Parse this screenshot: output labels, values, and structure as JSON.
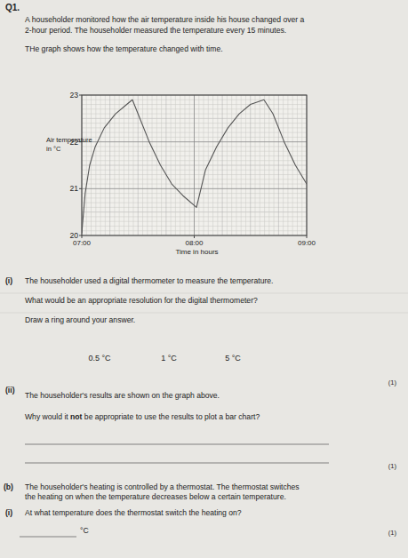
{
  "question_number": "Q1.",
  "intro": [
    "A householder monitored how the air temperature inside his house changed over a",
    "2-hour period. The householder measured the temperature every 15 minutes."
  ],
  "graph_intro": "THe graph shows how the temperature changed with time.",
  "chart_data": {
    "type": "line",
    "y_label": [
      "Air temperature",
      "in °C"
    ],
    "x_label": "Time in hours",
    "x": [
      7.0,
      7.03,
      7.07,
      7.12,
      7.2,
      7.3,
      7.4,
      7.45,
      7.5,
      7.6,
      7.7,
      7.8,
      7.9,
      8.02,
      8.1,
      8.2,
      8.3,
      8.4,
      8.5,
      8.62,
      8.7,
      8.8,
      8.9,
      9.0
    ],
    "series": [
      {
        "color": "#555555",
        "values": [
          20.05,
          20.9,
          21.5,
          21.9,
          22.3,
          22.6,
          22.8,
          22.9,
          22.6,
          22.0,
          21.5,
          21.1,
          20.85,
          20.6,
          21.4,
          21.9,
          22.3,
          22.6,
          22.8,
          22.9,
          22.6,
          22.0,
          21.5,
          21.1
        ]
      }
    ],
    "xlim": [
      7,
      9
    ],
    "xticks": [
      {
        "value": 7,
        "label": "07:00"
      },
      {
        "value": 8,
        "label": "08:00"
      },
      {
        "value": 9,
        "label": "09:00"
      }
    ],
    "ylim": [
      20,
      23
    ],
    "yticks": [
      20,
      21,
      22,
      23
    ],
    "grid": true
  },
  "part_a_i": {
    "label": "(i)",
    "lines": [
      "The householder used a digital thermometer to measure the temperature.",
      "What would be an appropriate resolution for the digital thermometer?",
      "Draw a ring around your answer."
    ],
    "options": [
      "0.5 °C",
      "1 °C",
      "5 °C"
    ],
    "marks": "(1)"
  },
  "part_a_ii": {
    "label": "(ii)",
    "line1": "The householder's results are shown on the graph above.",
    "question": {
      "before": "Why would it",
      "emphasis": "not",
      "after": "be appropriate to use the results to plot a bar chart?"
    },
    "marks": "(1)"
  },
  "part_b": {
    "label": "(b)",
    "lines": [
      "The householder's heating is controlled by a thermostat. The thermostat switches",
      "the heating on when the temperature decreases below a certain temperature."
    ]
  },
  "part_b_i": {
    "label": "(i)",
    "question": "At what temperature does the thermostat switch the heating on?",
    "unit": "°C",
    "marks": "(1)"
  }
}
